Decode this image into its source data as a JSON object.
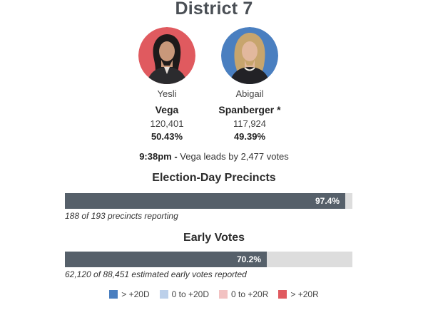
{
  "title": "District 7",
  "candidates": [
    {
      "first": "Yesli",
      "last": "Vega",
      "votes": "120,401",
      "pct": "50.43%",
      "color": "#e05a5f"
    },
    {
      "first": "Abigail",
      "last": "Spanberger *",
      "votes": "117,924",
      "pct": "49.39%",
      "color": "#4a7fc0"
    }
  ],
  "status": {
    "time": "9:38pm -",
    "text": " Vega leads by 2,477 votes"
  },
  "election_day": {
    "title": "Election-Day Precincts",
    "percent_label": "97.4%",
    "fraction": 0.974,
    "note": "188 of 193 precincts reporting"
  },
  "early_votes": {
    "title": "Early Votes",
    "percent_label": "70.2%",
    "fraction": 0.702,
    "note": "62,120 of 88,451 estimated early votes reported"
  },
  "legend": [
    {
      "label": "> +20D",
      "color": "#4a7fc0"
    },
    {
      "label": "0 to +20D",
      "color": "#bcd0ea"
    },
    {
      "label": "0 to +20R",
      "color": "#f2c2c2"
    },
    {
      "label": "> +20R",
      "color": "#e05a5f"
    }
  ]
}
